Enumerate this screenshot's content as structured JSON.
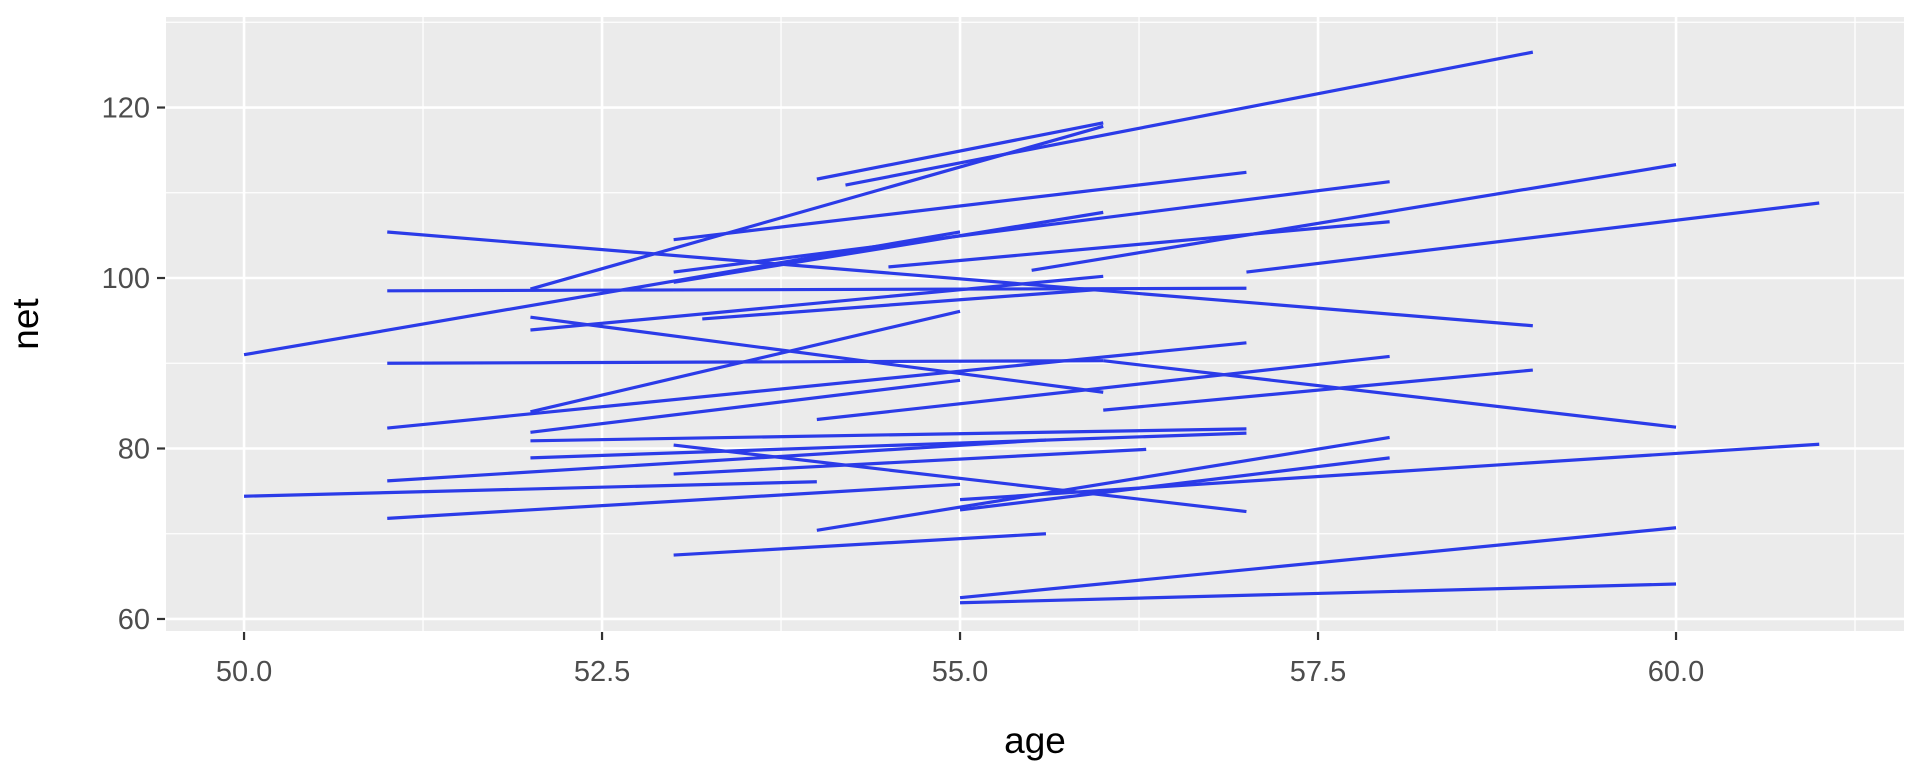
{
  "chart_data": {
    "type": "line",
    "subtype": "segment-spaghetti",
    "title": "",
    "xlabel": "age",
    "ylabel": "net",
    "x_ticks": [
      50.0,
      52.5,
      55.0,
      57.5,
      60.0
    ],
    "x_tick_labels": [
      "50.0",
      "52.5",
      "55.0",
      "57.5",
      "60.0"
    ],
    "y_ticks": [
      60,
      80,
      100,
      120
    ],
    "y_tick_labels": [
      "60",
      "80",
      "100",
      "120"
    ],
    "x_minor_breaks": [
      51.25,
      53.75,
      56.25,
      58.75,
      61.25
    ],
    "y_minor_breaks": [
      70,
      90,
      110,
      130
    ],
    "xlim": [
      49.455,
      61.592
    ],
    "ylim": [
      58.59,
      130.62
    ],
    "grid": "white major+minor on grey panel",
    "legend": "none",
    "panel_bg": "#EBEBEB",
    "line_color": "#2B3BE8",
    "line_width": 3.2,
    "tick_color": "#333333",
    "tick_label_color": "#4d4d4d",
    "segments_format": [
      "age_start",
      "net_start",
      "age_end",
      "net_end"
    ],
    "segments": [
      [
        54.0,
        111.6,
        56.0,
        118.2
      ],
      [
        52.0,
        98.7,
        56.0,
        117.8
      ],
      [
        54.2,
        110.9,
        59.0,
        126.5
      ],
      [
        53.0,
        104.5,
        57.0,
        112.4
      ],
      [
        53.0,
        100.7,
        58.0,
        111.3
      ],
      [
        54.5,
        101.3,
        58.0,
        106.6
      ],
      [
        53.0,
        99.5,
        56.0,
        107.7
      ],
      [
        51.0,
        98.5,
        57.0,
        98.8
      ],
      [
        51.0,
        105.4,
        59.0,
        94.4
      ],
      [
        50.0,
        91.0,
        55.0,
        105.4
      ],
      [
        51.0,
        90.0,
        56.0,
        90.3
      ],
      [
        52.0,
        95.4,
        56.0,
        86.6
      ],
      [
        52.0,
        93.9,
        56.0,
        100.2
      ],
      [
        52.0,
        84.3,
        55.0,
        96.1
      ],
      [
        52.0,
        81.9,
        55.0,
        88.0
      ],
      [
        53.2,
        95.2,
        56.0,
        98.7
      ],
      [
        51.0,
        82.4,
        57.0,
        92.4
      ],
      [
        54.0,
        83.4,
        58.0,
        90.8
      ],
      [
        56.0,
        90.3,
        60.0,
        82.5
      ],
      [
        56.0,
        84.5,
        59.0,
        89.2
      ],
      [
        57.0,
        100.7,
        61.0,
        108.8
      ],
      [
        55.5,
        100.9,
        60.0,
        113.3
      ],
      [
        50.0,
        74.4,
        54.0,
        76.1
      ],
      [
        51.0,
        76.2,
        55.6,
        81.0
      ],
      [
        51.0,
        71.8,
        55.0,
        75.8
      ],
      [
        53.0,
        80.4,
        57.0,
        72.6
      ],
      [
        53.0,
        77.0,
        56.3,
        79.9
      ],
      [
        54.0,
        70.4,
        58.0,
        81.3
      ],
      [
        55.0,
        74.0,
        61.0,
        80.5
      ],
      [
        53.0,
        67.5,
        55.6,
        70.0
      ],
      [
        55.0,
        62.5,
        60.0,
        70.7
      ],
      [
        55.0,
        61.9,
        60.0,
        64.1
      ],
      [
        52.0,
        80.9,
        57.0,
        82.3
      ],
      [
        52.0,
        78.9,
        57.0,
        81.8
      ],
      [
        55.0,
        72.8,
        58.0,
        78.9
      ]
    ]
  }
}
